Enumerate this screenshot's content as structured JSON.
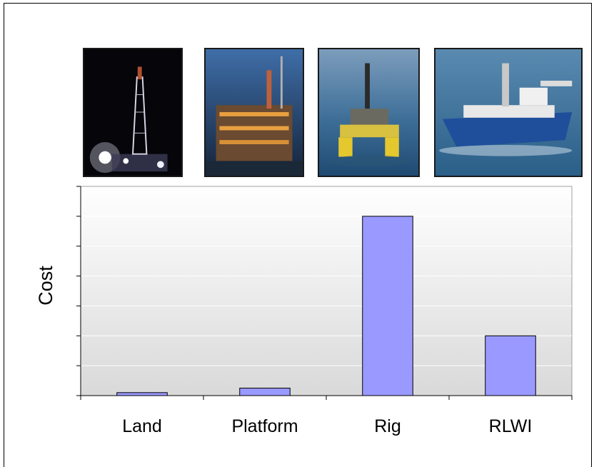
{
  "photos": [
    {
      "name": "land-rig-photo"
    },
    {
      "name": "platform-photo"
    },
    {
      "name": "rig-photo"
    },
    {
      "name": "rlwi-vessel-photo"
    }
  ],
  "colors": {
    "bar": "#9999ff",
    "bar_stroke": "#000000",
    "plot_bg_top": "#ffffff",
    "plot_bg_bottom": "#d9d9d9",
    "gridline": "#ffffff"
  },
  "chart_data": {
    "type": "bar",
    "categories": [
      "Land",
      "Platform",
      "Rig",
      "RLWI"
    ],
    "values": [
      0.1,
      0.25,
      6.0,
      2.0
    ],
    "ylabel": "Cost",
    "xlabel": "",
    "ylim": [
      0,
      7
    ],
    "yticks_labeled": false,
    "grid": true,
    "legend": "none"
  }
}
